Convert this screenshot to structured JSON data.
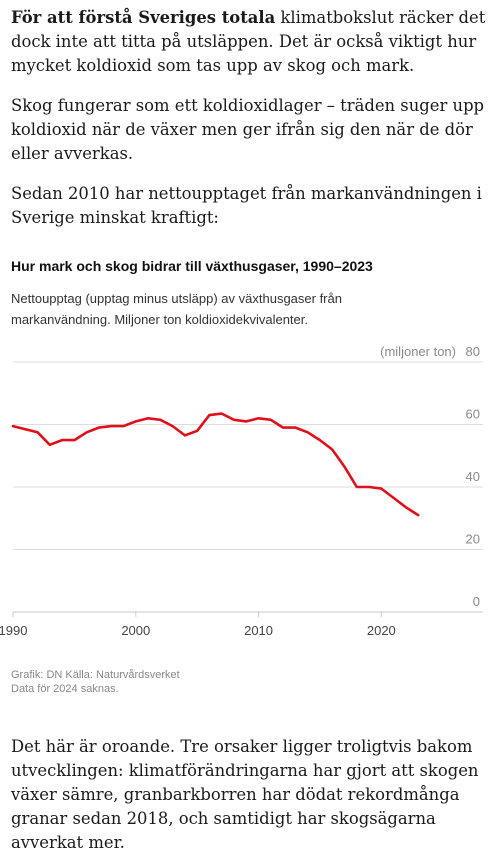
{
  "article": {
    "p1_lead": "För att förstå Sveriges totala",
    "p1_rest": " klimatbokslut räcker det dock inte att titta på utsläppen. Det är också viktigt hur mycket koldioxid som tas upp av skog och mark.",
    "p2": "Skog fungerar som ett koldioxidlager – träden suger upp koldioxid när de växer men ger ifrån sig den när de dör eller avverkas.",
    "p3": "Sedan 2010 har nettoupptaget från markanvändningen i Sverige minskat kraftigt:",
    "p4": "Det här är oroande. Tre orsaker ligger troligtvis bakom utvecklingen: klimatförändringarna har gjort att skogen växer sämre, granbarkborren har dödat rekordmånga granar sedan 2018, och samtidigt har skogsägarna avverkat mer."
  },
  "chart_data": {
    "type": "line",
    "title": "Hur mark och skog bidrar till växthusgaser, 1990–2023",
    "subtitle": "Nettoupptag (upptag minus utsläpp) av växthusgaser från markanvändning. Miljoner ton koldioxidekvivalenter.",
    "y_unit_label": "(miljoner ton)",
    "xlim": [
      1990,
      2026
    ],
    "ylim": [
      0,
      80
    ],
    "x_ticks": [
      1990,
      2000,
      2010,
      2020
    ],
    "y_ticks": [
      0,
      20,
      40,
      60,
      80
    ],
    "grid": "horizontal",
    "color": "#e0101a",
    "series": [
      {
        "x": [
          1990,
          1991,
          1992,
          1993,
          1994,
          1995,
          1996,
          1997,
          1998,
          1999,
          2000,
          2001,
          2002,
          2003,
          2004,
          2005,
          2006,
          2007,
          2008,
          2009,
          2010,
          2011,
          2012,
          2013,
          2014,
          2015,
          2016,
          2017,
          2018,
          2019,
          2020,
          2021,
          2022,
          2023
        ],
        "values": [
          59.5,
          58.5,
          57.5,
          53.5,
          55.0,
          55.0,
          57.5,
          59.0,
          59.5,
          59.5,
          61.0,
          62.0,
          61.5,
          59.5,
          56.5,
          58.0,
          63.0,
          63.5,
          61.5,
          61.0,
          62.0,
          61.5,
          59.0,
          59.0,
          57.5,
          55.0,
          52.0,
          46.5,
          40.0,
          40.0,
          39.5,
          36.5,
          33.5,
          31.0
        ]
      }
    ],
    "credit_line": "Grafik: DN Källa: Naturvårdsverket",
    "note": "Data för 2024 saknas."
  }
}
